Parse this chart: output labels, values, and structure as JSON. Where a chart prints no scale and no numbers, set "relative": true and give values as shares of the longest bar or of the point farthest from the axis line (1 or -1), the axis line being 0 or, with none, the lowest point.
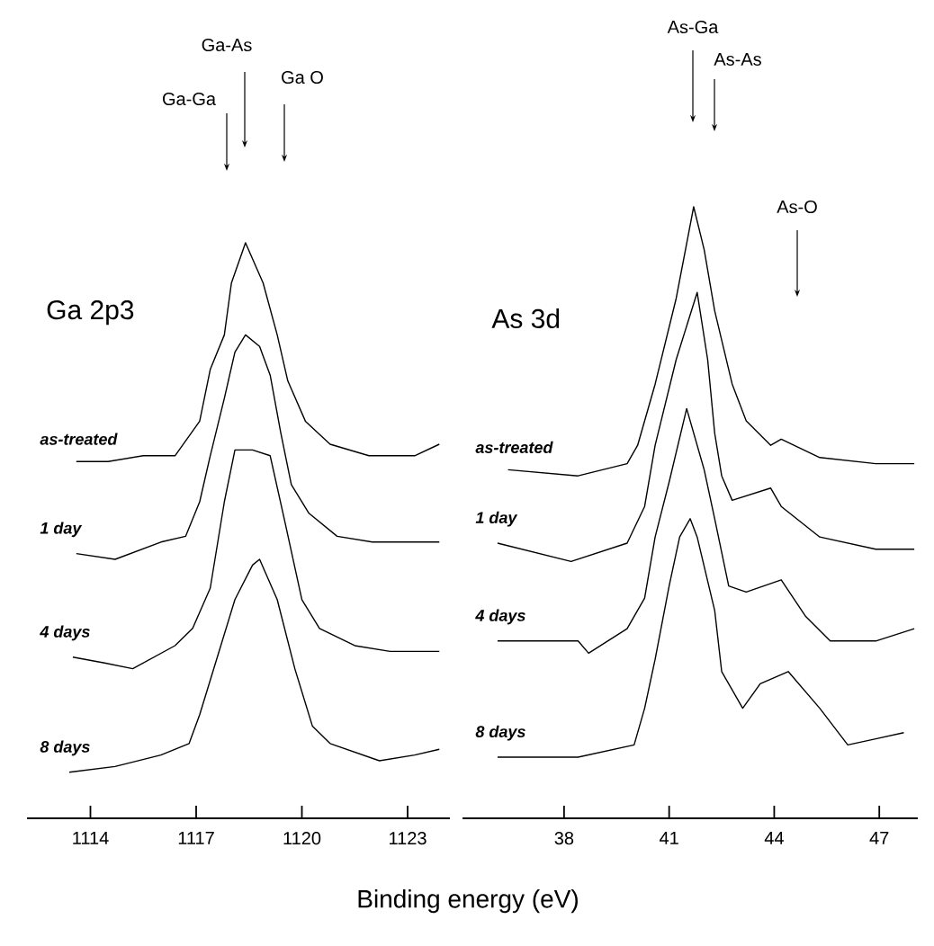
{
  "chart_data": [
    {
      "type": "line",
      "title": "Ga 2p3",
      "xlabel": "Binding energy (eV)",
      "relative": true,
      "xlim": [
        1112.2,
        1124.2
      ],
      "xticks": [
        1114,
        1117,
        1120,
        1123
      ],
      "legend": false,
      "annotations": [
        "Ga-Ga",
        "Ga-As",
        "Ga O"
      ],
      "series": [
        {
          "name": "as-treated",
          "color": "#000000",
          "x": [
            1113.6,
            1114.5,
            1115.5,
            1116.4,
            1117.1,
            1117.4,
            1117.8,
            1118.0,
            1118.4,
            1118.9,
            1119.3,
            1119.6,
            1120.1,
            1120.8,
            1121.9,
            1123.2,
            1123.9
          ],
          "values": [
            0.62,
            0.62,
            0.63,
            0.63,
            0.69,
            0.78,
            0.84,
            0.93,
            1.0,
            0.93,
            0.84,
            0.76,
            0.69,
            0.65,
            0.63,
            0.63,
            0.65
          ]
        },
        {
          "name": "1 day",
          "color": "#000000",
          "x": [
            1113.6,
            1114.7,
            1116.0,
            1116.7,
            1117.1,
            1117.4,
            1117.8,
            1118.1,
            1118.4,
            1118.8,
            1119.1,
            1119.4,
            1119.7,
            1120.2,
            1121.0,
            1122.0,
            1123.0,
            1123.9
          ],
          "values": [
            0.46,
            0.45,
            0.48,
            0.49,
            0.55,
            0.63,
            0.73,
            0.81,
            0.84,
            0.82,
            0.77,
            0.67,
            0.58,
            0.53,
            0.49,
            0.48,
            0.48,
            0.48
          ]
        },
        {
          "name": "4 days",
          "color": "#000000",
          "x": [
            1113.5,
            1114.4,
            1115.2,
            1116.4,
            1116.9,
            1117.4,
            1117.8,
            1118.1,
            1118.6,
            1119.1,
            1119.5,
            1120.0,
            1120.5,
            1121.5,
            1122.5,
            1123.9
          ],
          "values": [
            0.28,
            0.27,
            0.26,
            0.3,
            0.33,
            0.4,
            0.55,
            0.64,
            0.64,
            0.63,
            0.52,
            0.38,
            0.33,
            0.3,
            0.29,
            0.29
          ]
        },
        {
          "name": "8 days",
          "color": "#000000",
          "x": [
            1113.4,
            1114.7,
            1116.0,
            1116.8,
            1117.1,
            1117.6,
            1118.1,
            1118.6,
            1118.8,
            1119.3,
            1119.8,
            1120.3,
            1120.8,
            1122.2,
            1123.2,
            1123.9
          ],
          "values": [
            0.08,
            0.09,
            0.11,
            0.13,
            0.18,
            0.28,
            0.38,
            0.44,
            0.45,
            0.38,
            0.26,
            0.16,
            0.13,
            0.1,
            0.11,
            0.12
          ]
        }
      ]
    },
    {
      "type": "line",
      "title": "As 3d",
      "relative": true,
      "xlim": [
        35.1,
        48.1
      ],
      "xticks": [
        38,
        41,
        44,
        47
      ],
      "legend": false,
      "annotations": [
        "As-Ga",
        "As-As",
        "As-O"
      ],
      "series": [
        {
          "name": "as-treated",
          "color": "#000000",
          "x": [
            36.4,
            38.4,
            39.8,
            40.1,
            40.6,
            41.2,
            41.7,
            42.0,
            42.3,
            42.8,
            43.2,
            43.9,
            44.2,
            45.3,
            46.9,
            48.0
          ],
          "values": [
            0.57,
            0.56,
            0.58,
            0.61,
            0.71,
            0.85,
            1.0,
            0.93,
            0.83,
            0.71,
            0.65,
            0.61,
            0.62,
            0.59,
            0.58,
            0.58
          ]
        },
        {
          "name": "1 day",
          "color": "#000000",
          "x": [
            36.1,
            38.2,
            39.8,
            40.3,
            40.6,
            41.2,
            41.8,
            42.1,
            42.3,
            42.5,
            42.8,
            43.9,
            44.2,
            45.3,
            46.9,
            48.0
          ],
          "values": [
            0.45,
            0.42,
            0.45,
            0.51,
            0.61,
            0.75,
            0.86,
            0.75,
            0.63,
            0.56,
            0.52,
            0.54,
            0.51,
            0.46,
            0.44,
            0.44
          ]
        },
        {
          "name": "4 days",
          "color": "#000000",
          "x": [
            36.1,
            38.4,
            38.7,
            39.8,
            40.3,
            40.6,
            41.0,
            41.5,
            42.0,
            42.3,
            42.7,
            43.2,
            44.2,
            44.9,
            45.6,
            46.9,
            48.0
          ],
          "values": [
            0.29,
            0.29,
            0.27,
            0.31,
            0.36,
            0.46,
            0.55,
            0.67,
            0.57,
            0.49,
            0.38,
            0.37,
            0.39,
            0.33,
            0.29,
            0.29,
            0.31
          ]
        },
        {
          "name": "8 days",
          "color": "#000000",
          "x": [
            36.1,
            38.4,
            40.0,
            40.3,
            40.6,
            41.0,
            41.3,
            41.6,
            41.8,
            42.3,
            42.5,
            43.1,
            43.6,
            44.4,
            45.3,
            46.1,
            46.9,
            47.7
          ],
          "values": [
            0.1,
            0.1,
            0.12,
            0.18,
            0.26,
            0.38,
            0.46,
            0.49,
            0.46,
            0.34,
            0.24,
            0.18,
            0.22,
            0.24,
            0.18,
            0.12,
            0.13,
            0.14
          ]
        }
      ]
    }
  ]
}
